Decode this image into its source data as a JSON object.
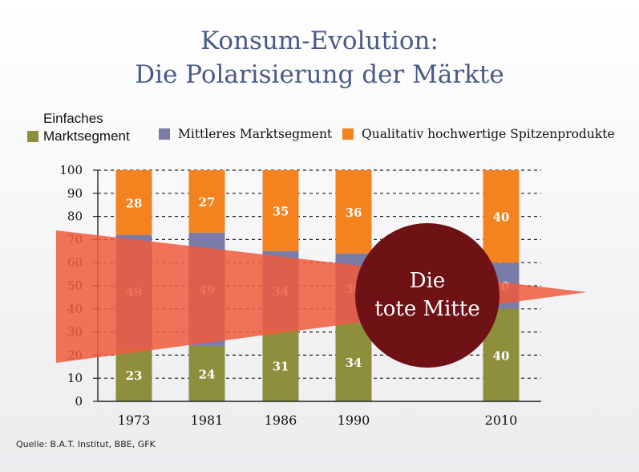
{
  "header": {
    "title_line1": "Konsum-Evolution:",
    "title_line2": "Die Polarisierung der Märkte"
  },
  "legend": {
    "entries": [
      {
        "label_line1": "Einfaches",
        "label_line2": "Marktsegment",
        "color": "#8e8f3d"
      },
      {
        "label": "Mittleres Marktsegment",
        "color": "#7b7ba8"
      },
      {
        "label": "Qualitativ hochwertige Spitzenprodukte",
        "color": "#f4821f"
      }
    ]
  },
  "overlay": {
    "bubble_line1": "Die",
    "bubble_line2": "tote Mitte",
    "wedge_color": "#f05a3c",
    "bubble_color": "#6e1216"
  },
  "source": "Quelle: B.A.T. Institut, BBE, GFK",
  "chart_data": {
    "type": "bar",
    "stacked": true,
    "categories": [
      "1973",
      "1981",
      "1986",
      "1990",
      "2010"
    ],
    "series": [
      {
        "name": "Einfaches Marktsegment",
        "values": [
          23,
          24,
          31,
          34,
          40
        ],
        "color": "#8e8f3d"
      },
      {
        "name": "Mittleres Marktsegment",
        "values": [
          49,
          49,
          34,
          30,
          20
        ],
        "color": "#7b7ba8"
      },
      {
        "name": "Qualitativ hochwertige Spitzenprodukte",
        "values": [
          28,
          27,
          35,
          36,
          40
        ],
        "color": "#f4821f"
      }
    ],
    "data_labels": [
      [
        "23",
        "24",
        "31",
        "34",
        "40"
      ],
      [
        "49",
        "49",
        "34",
        "30",
        "20"
      ],
      [
        "28",
        "27",
        "35",
        "36",
        "40"
      ]
    ],
    "yticks": [
      0,
      10,
      20,
      30,
      40,
      50,
      60,
      70,
      80,
      90,
      100
    ],
    "ylim": [
      0,
      100
    ],
    "grid": true,
    "legend_position": "top"
  }
}
